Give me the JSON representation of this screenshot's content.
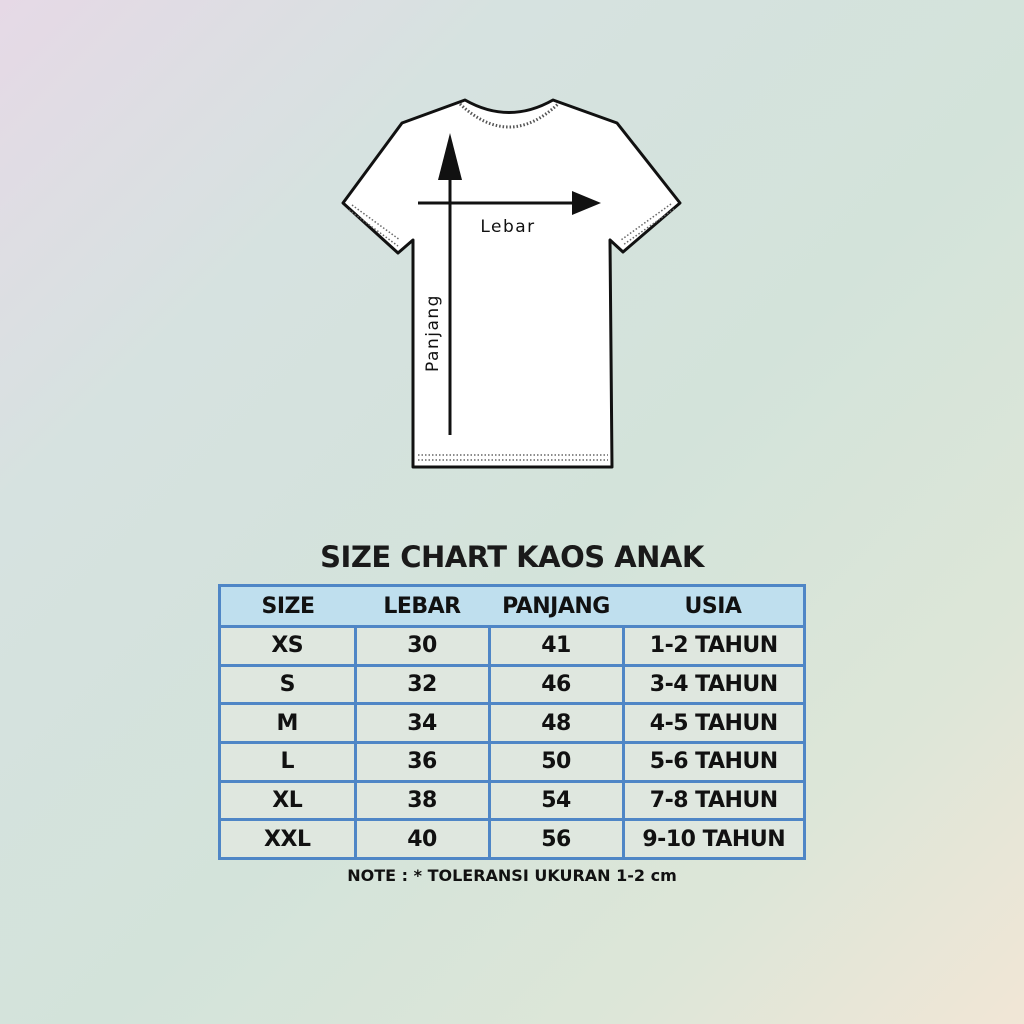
{
  "diagram": {
    "width_label": "Lebar",
    "length_label": "Panjang"
  },
  "title": "SIZE CHART KAOS ANAK",
  "table": {
    "headers": [
      "SIZE",
      "LEBAR",
      "PANJANG",
      "USIA"
    ],
    "rows": [
      [
        "XS",
        "30",
        "41",
        "1-2 TAHUN"
      ],
      [
        "S",
        "32",
        "46",
        "3-4 TAHUN"
      ],
      [
        "M",
        "34",
        "48",
        "4-5 TAHUN"
      ],
      [
        "L",
        "36",
        "50",
        "5-6 TAHUN"
      ],
      [
        "XL",
        "38",
        "54",
        "7-8 TAHUN"
      ],
      [
        "XXL",
        "40",
        "56",
        "9-10 TAHUN"
      ]
    ]
  },
  "note": "NOTE : * TOLERANSI UKURAN 1-2 cm",
  "colors": {
    "border": "#4f86c6",
    "header_bg": "#bfdfee"
  }
}
